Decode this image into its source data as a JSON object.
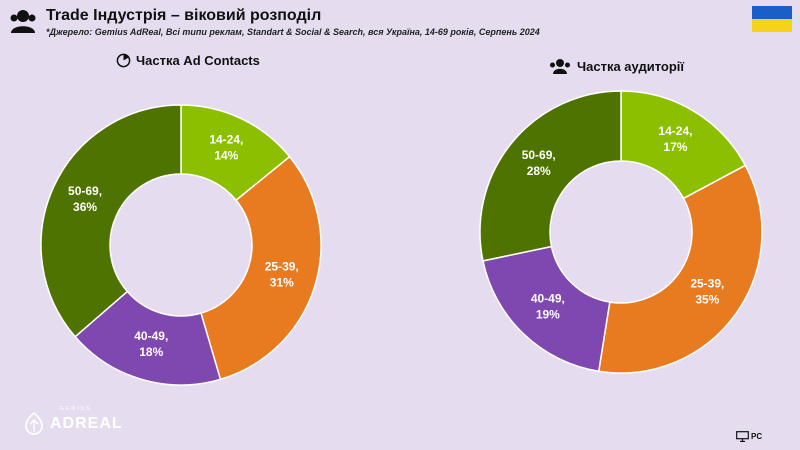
{
  "header": {
    "title": "Trade Індустрія – віковий розподіл",
    "subtitle": "*Джерело: Gemius AdReal, Всі типи реклам, Standart & Social & Search, вся Україна, 14-69 років, Серпень 2024",
    "icon": "users-icon"
  },
  "flag": {
    "colors": [
      "#1a5ec8",
      "#f6d21a"
    ]
  },
  "chart_data": [
    {
      "type": "pie",
      "title": "Частка Ad Contacts",
      "title_icon": "clock-icon",
      "categories": [
        "14-24",
        "25-39",
        "40-49",
        "50-69"
      ],
      "values": [
        14,
        31,
        18,
        36
      ],
      "labels": [
        "14-24,\n14%",
        "25-39,\n31%",
        "40-49,\n18%",
        "50-69,\n36%"
      ],
      "colors": [
        "#8cbf00",
        "#e87a20",
        "#7f47b0",
        "#4f7300"
      ]
    },
    {
      "type": "pie",
      "title": "Частка аудиторії",
      "title_icon": "people-icon",
      "categories": [
        "14-24",
        "25-39",
        "40-49",
        "50-69"
      ],
      "values": [
        17,
        35,
        19,
        28
      ],
      "labels": [
        "14-24,\n17%",
        "25-39,\n35%",
        "40-49,\n19%",
        "50-69,\n28%"
      ],
      "colors": [
        "#8cbf00",
        "#e87a20",
        "#7f47b0",
        "#4f7300"
      ]
    }
  ],
  "footer": {
    "logo_text": "ADREAL",
    "logo_small": "GEMIUS",
    "device": "PC",
    "device_icon": "monitor-icon"
  }
}
